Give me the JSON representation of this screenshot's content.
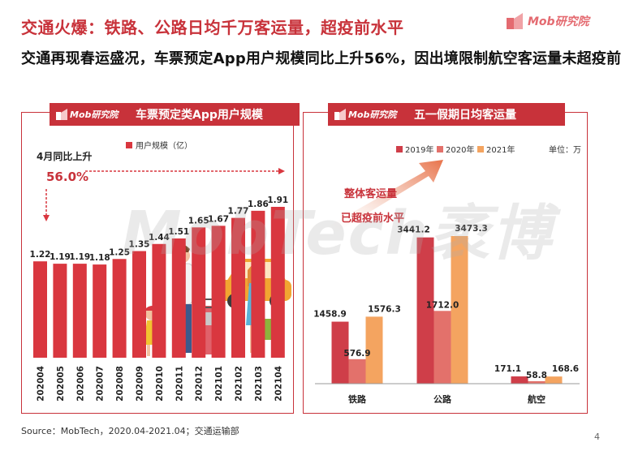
{
  "brand": {
    "logo_text": "Mob研究院"
  },
  "header": {
    "title": "交通火爆：铁路、公路日均千万客运量，超疫前水平",
    "subtitle": "交通再现春运盛况，车票预定App用户规模同比上升56%，因出境限制航空客运量未超疫前"
  },
  "watermark": "MobTech袤博",
  "footer": {
    "source": "Source：MobTech，2020.04-2021.04；交通运输部",
    "page": "4"
  },
  "colors": {
    "brand_red": "#c8323a",
    "bar_red": "#d9373f",
    "bar_2019": "#cf3e49",
    "bar_2020": "#e3716b",
    "bar_2021": "#f4a460"
  },
  "chart_data": [
    {
      "type": "bar",
      "title": "车票预定类App用户规模",
      "legend": [
        "用户规模（亿）"
      ],
      "annotation": {
        "label": "4月同比上升",
        "value": "56.0%"
      },
      "categories": [
        "202004",
        "202005",
        "202006",
        "202007",
        "202008",
        "202009",
        "202010",
        "202011",
        "202012",
        "202101",
        "202102",
        "202103",
        "202104"
      ],
      "series": [
        {
          "name": "用户规模（亿）",
          "values": [
            1.22,
            1.19,
            1.19,
            1.18,
            1.25,
            1.35,
            1.44,
            1.51,
            1.65,
            1.67,
            1.77,
            1.86,
            1.91
          ]
        }
      ],
      "data_labels": [
        "1.22",
        "1.19",
        "1.19",
        "1.18",
        "1.25",
        "1.35",
        "1.44",
        "1.51",
        "1.65",
        "1.67",
        "1.77",
        "1.86",
        "1.91"
      ],
      "ylim": [
        0,
        1.91
      ]
    },
    {
      "type": "bar",
      "title": "五一假期日均客运量",
      "unit_label": "单位：万",
      "annotation_lines": [
        "整体客运量",
        "已超疫前水平"
      ],
      "categories": [
        "铁路",
        "公路",
        "航空"
      ],
      "series": [
        {
          "name": "2019年",
          "values": [
            1458.9,
            3441.2,
            171.1
          ]
        },
        {
          "name": "2020年",
          "values": [
            576.9,
            1712.0,
            58.8
          ]
        },
        {
          "name": "2021年",
          "values": [
            1576.3,
            3473.3,
            168.6
          ]
        }
      ],
      "data_labels": [
        [
          "1458.9",
          "3441.2",
          "171.1"
        ],
        [
          "576.9",
          "1712.0",
          "58.8"
        ],
        [
          "1576.3",
          "3473.3",
          "168.6"
        ]
      ],
      "ylim": [
        0,
        3473.3
      ]
    }
  ]
}
